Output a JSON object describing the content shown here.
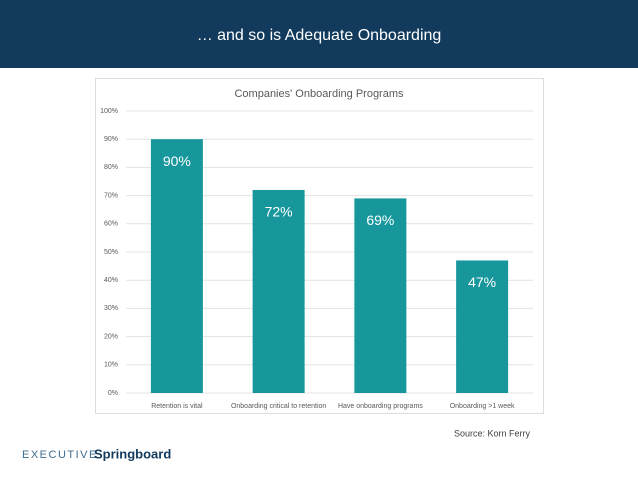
{
  "header": {
    "title": "… and so is Adequate Onboarding"
  },
  "chart_data": {
    "type": "bar",
    "title": "Companies' Onboarding Programs",
    "categories": [
      "Retention is vital",
      "Onboarding critical to retention",
      "Have onboarding programs",
      "Onboarding >1 week"
    ],
    "values": [
      90,
      72,
      69,
      47
    ],
    "value_labels": [
      "90%",
      "72%",
      "69%",
      "47%"
    ],
    "color": "#17979c",
    "ylim": [
      0,
      100
    ],
    "yticks": [
      {
        "value": 0,
        "label": "0%"
      },
      {
        "value": 10,
        "label": "10%"
      },
      {
        "value": 20,
        "label": "20%"
      },
      {
        "value": 30,
        "label": "30%"
      },
      {
        "value": 40,
        "label": "40%"
      },
      {
        "value": 50,
        "label": "50%"
      },
      {
        "value": 60,
        "label": "60%"
      },
      {
        "value": 70,
        "label": "70%"
      },
      {
        "value": 80,
        "label": "80%"
      },
      {
        "value": 90,
        "label": "90%"
      },
      {
        "value": 100,
        "label": "100%"
      }
    ],
    "grid": true
  },
  "footer": {
    "source": "Source: Korn Ferry",
    "logo_light": "EXECUTIVE",
    "logo_bold": "Springboard"
  }
}
